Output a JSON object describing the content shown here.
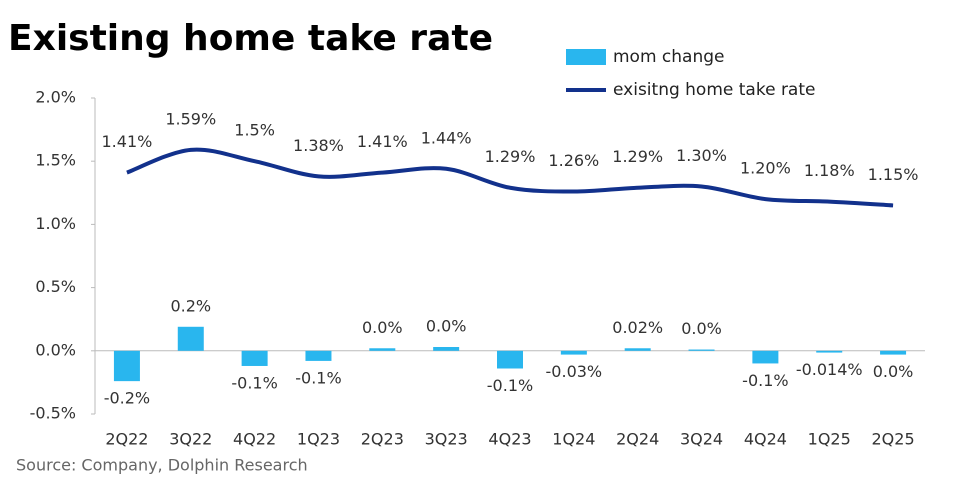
{
  "chart_data": {
    "type": "combo",
    "title": "Existing home take rate",
    "source": "Source: Company, Dolphin Research",
    "categories": [
      "2Q22",
      "3Q22",
      "4Q22",
      "1Q23",
      "2Q23",
      "3Q23",
      "4Q23",
      "1Q24",
      "2Q24",
      "3Q24",
      "4Q24",
      "1Q25",
      "2Q25"
    ],
    "series": [
      {
        "name": "mom change",
        "type": "bar",
        "color": "#29b6ee",
        "values": [
          -0.24,
          0.19,
          -0.12,
          -0.08,
          0.02,
          0.03,
          -0.14,
          -0.03,
          0.02,
          0.01,
          -0.1,
          -0.014,
          -0.03
        ],
        "value_labels": [
          "-0.2%",
          "0.2%",
          "-0.1%",
          "-0.1%",
          "0.0%",
          "0.0%",
          "-0.1%",
          "-0.03%",
          "0.02%",
          "0.0%",
          "-0.1%",
          "-0.014%",
          "0.0%"
        ]
      },
      {
        "name": "exisitng home take rate",
        "type": "line",
        "color": "#12318c",
        "values": [
          1.41,
          1.59,
          1.5,
          1.38,
          1.41,
          1.44,
          1.29,
          1.26,
          1.29,
          1.3,
          1.2,
          1.18,
          1.15
        ],
        "value_labels": [
          "1.41%",
          "1.59%",
          "1.5%",
          "1.38%",
          "1.41%",
          "1.44%",
          "1.29%",
          "1.26%",
          "1.29%",
          "1.30%",
          "1.20%",
          "1.18%",
          "1.15%"
        ]
      }
    ],
    "ylim": [
      -0.5,
      2.0
    ],
    "yticks": [
      {
        "value": -0.5,
        "label": "-0.5%"
      },
      {
        "value": 0,
        "label": "0.0%"
      },
      {
        "value": 0.5,
        "label": "0.5%"
      },
      {
        "value": 1.0,
        "label": "1.0%"
      },
      {
        "value": 1.5,
        "label": "1.5%"
      },
      {
        "value": 2.0,
        "label": "2.0%"
      }
    ],
    "grid": false
  }
}
